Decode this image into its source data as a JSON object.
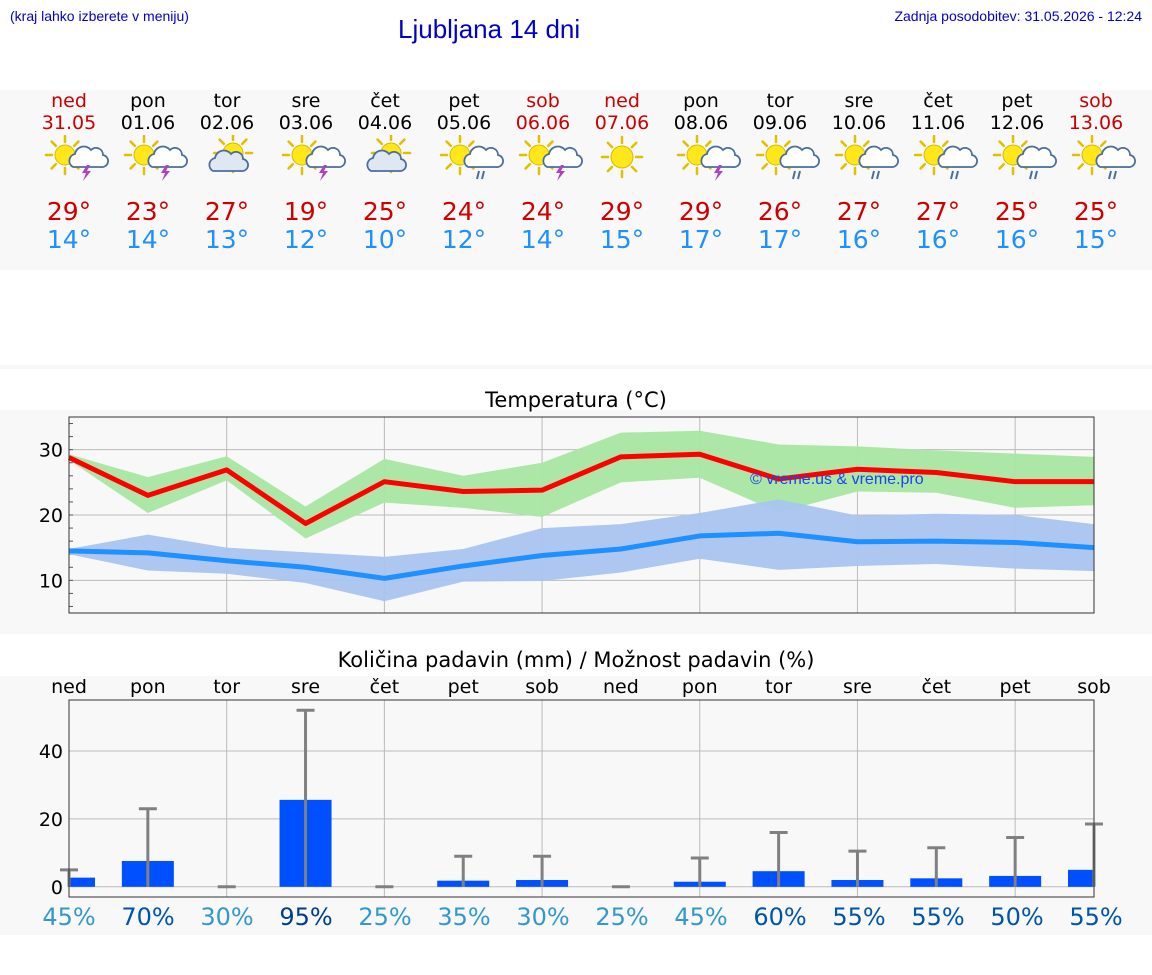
{
  "header": {
    "left_note": "(kraj lahko izberete v meniju)",
    "title": "Ljubljana 14 dni",
    "updated": "Zadnja posodobitev: 31.05.2026 - 12:24"
  },
  "days": [
    {
      "name": "ned",
      "date": "31.05",
      "weekend": true,
      "icon": "sun-cloud-thunder-icon",
      "hi": "29°",
      "lo": "14°"
    },
    {
      "name": "pon",
      "date": "01.06",
      "weekend": false,
      "icon": "sun-cloud-thunder-icon",
      "hi": "23°",
      "lo": "14°"
    },
    {
      "name": "tor",
      "date": "02.06",
      "weekend": false,
      "icon": "sun-cloud-icon",
      "hi": "27°",
      "lo": "13°"
    },
    {
      "name": "sre",
      "date": "03.06",
      "weekend": false,
      "icon": "sun-cloud-thunder-icon",
      "hi": "19°",
      "lo": "12°"
    },
    {
      "name": "čet",
      "date": "04.06",
      "weekend": false,
      "icon": "sun-cloud-icon",
      "hi": "25°",
      "lo": "10°"
    },
    {
      "name": "pet",
      "date": "05.06",
      "weekend": false,
      "icon": "sun-cloud-rain-icon",
      "hi": "24°",
      "lo": "12°"
    },
    {
      "name": "sob",
      "date": "06.06",
      "weekend": true,
      "icon": "sun-cloud-thunder-icon",
      "hi": "24°",
      "lo": "14°"
    },
    {
      "name": "ned",
      "date": "07.06",
      "weekend": true,
      "icon": "sun-icon",
      "hi": "29°",
      "lo": "15°"
    },
    {
      "name": "pon",
      "date": "08.06",
      "weekend": false,
      "icon": "sun-cloud-thunder-icon",
      "hi": "29°",
      "lo": "17°"
    },
    {
      "name": "tor",
      "date": "09.06",
      "weekend": false,
      "icon": "sun-cloud-rain-icon",
      "hi": "26°",
      "lo": "17°"
    },
    {
      "name": "sre",
      "date": "10.06",
      "weekend": false,
      "icon": "sun-cloud-rain-icon",
      "hi": "27°",
      "lo": "16°"
    },
    {
      "name": "čet",
      "date": "11.06",
      "weekend": false,
      "icon": "sun-cloud-rain-icon",
      "hi": "27°",
      "lo": "16°"
    },
    {
      "name": "pet",
      "date": "12.06",
      "weekend": false,
      "icon": "sun-cloud-rain-icon",
      "hi": "25°",
      "lo": "16°"
    },
    {
      "name": "sob",
      "date": "13.06",
      "weekend": true,
      "icon": "sun-cloud-rain-icon",
      "hi": "25°",
      "lo": "15°"
    }
  ],
  "colors": {
    "weekend": "#cc0000",
    "weekday": "#000000",
    "hi_temp": "#d00000",
    "lo_temp": "#1e90ff",
    "max_line": "#ff0000",
    "min_line": "#1e90ff",
    "max_band": "#a8e6a3",
    "min_band": "#a9c4f0",
    "bar": "#0050ff",
    "whisker": "#808080"
  },
  "chart_data": [
    {
      "type": "line",
      "title": "Temperatura (°C)",
      "watermark": "© vreme.us & vreme.pro",
      "categories": [
        "31.05",
        "01.06",
        "02.06",
        "03.06",
        "04.06",
        "05.06",
        "06.06",
        "07.06",
        "08.06",
        "09.06",
        "10.06",
        "11.06",
        "12.06",
        "13.06"
      ],
      "ylim": [
        5,
        35
      ],
      "yticks": [
        10,
        20,
        30
      ],
      "grid": true,
      "series": [
        {
          "values": [
            28.8,
            23.0,
            26.9,
            18.7,
            25.1,
            23.6,
            23.8,
            28.9,
            29.3,
            25.5,
            27.0,
            26.5,
            25.1,
            25.1
          ]
        },
        {
          "values": [
            14.5,
            14.2,
            13.0,
            12.0,
            10.3,
            12.2,
            13.8,
            14.8,
            16.8,
            17.2,
            15.9,
            16.0,
            15.8,
            15.0
          ]
        }
      ],
      "bands": [
        {
          "upper": [
            29.3,
            25.8,
            29.0,
            21.3,
            28.6,
            26.0,
            28.0,
            32.6,
            32.9,
            30.8,
            30.5,
            29.9,
            29.4,
            28.9
          ],
          "lower": [
            28.4,
            20.3,
            25.3,
            16.4,
            21.9,
            21.1,
            19.7,
            25.0,
            25.7,
            20.4,
            23.6,
            23.4,
            21.1,
            21.5
          ]
        },
        {
          "upper": [
            14.8,
            17.0,
            15.0,
            14.3,
            13.6,
            14.8,
            18.0,
            18.6,
            20.3,
            22.4,
            19.9,
            20.2,
            20.0,
            18.6
          ],
          "lower": [
            14.0,
            11.5,
            11.0,
            9.6,
            6.8,
            9.8,
            9.9,
            11.2,
            13.3,
            11.6,
            12.2,
            12.5,
            11.8,
            11.4
          ]
        }
      ]
    },
    {
      "type": "bar",
      "title": "Količina padavin (mm) / Možnost padavin (%)",
      "categories": [
        "ned",
        "pon",
        "tor",
        "sre",
        "čet",
        "pet",
        "sob",
        "ned",
        "pon",
        "tor",
        "sre",
        "čet",
        "pet",
        "sob"
      ],
      "ylim": [
        -3,
        55
      ],
      "yticks": [
        0,
        20,
        40
      ],
      "grid": true,
      "values": [
        2.7,
        7.6,
        0.0,
        25.6,
        0.0,
        1.8,
        2.0,
        0.0,
        1.5,
        4.6,
        2.0,
        2.5,
        3.2,
        5.0
      ],
      "max_values": [
        5.0,
        23.0,
        0.0,
        52.0,
        0.0,
        9.0,
        9.0,
        0.0,
        8.5,
        16.0,
        10.5,
        11.5,
        14.5,
        18.5
      ],
      "chance": [
        "45%",
        "70%",
        "30%",
        "95%",
        "25%",
        "35%",
        "30%",
        "25%",
        "45%",
        "60%",
        "55%",
        "55%",
        "50%",
        "55%"
      ],
      "chance_colors": [
        "#3399cc",
        "#0055aa",
        "#3399cc",
        "#003c8f",
        "#3399cc",
        "#3399cc",
        "#3399cc",
        "#3399cc",
        "#3399cc",
        "#0055aa",
        "#0055aa",
        "#0055aa",
        "#0055aa",
        "#0055aa"
      ]
    }
  ]
}
